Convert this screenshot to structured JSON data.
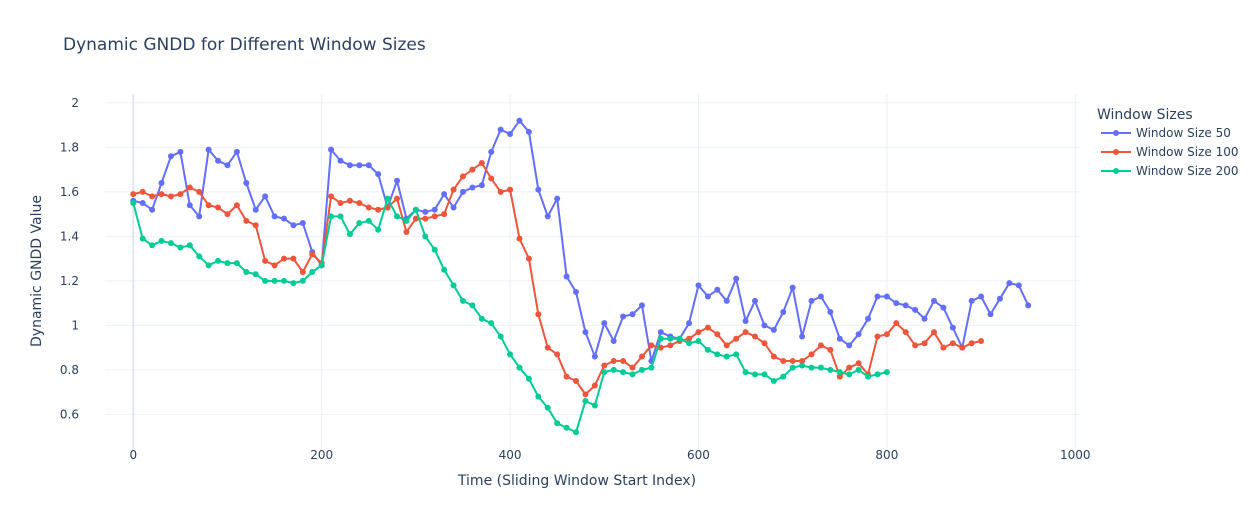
{
  "chart_data": {
    "type": "line",
    "title": "Dynamic GNDD for Different Window Sizes",
    "xlabel": "Time (Sliding Window Start Index)",
    "ylabel": "Dynamic GNDD Value",
    "xlim": [
      -30,
      1005
    ],
    "ylim": [
      0.44,
      2.04
    ],
    "xticks": [
      0,
      200,
      400,
      600,
      800,
      1000
    ],
    "yticks": [
      0.6,
      0.8,
      1,
      1.2,
      1.4,
      1.6,
      1.8,
      2
    ],
    "grid": true,
    "legend": {
      "title": "Window Sizes",
      "position": "top-right"
    },
    "series": [
      {
        "name": "Window Size 50",
        "color": "#636efa",
        "x_start": 0,
        "x_step": 10,
        "values": [
          1.56,
          1.55,
          1.52,
          1.64,
          1.76,
          1.78,
          1.54,
          1.49,
          1.79,
          1.74,
          1.72,
          1.78,
          1.64,
          1.52,
          1.58,
          1.49,
          1.48,
          1.45,
          1.46,
          1.33,
          1.27,
          1.79,
          1.74,
          1.72,
          1.72,
          1.72,
          1.68,
          1.53,
          1.65,
          1.48,
          1.52,
          1.51,
          1.52,
          1.59,
          1.53,
          1.6,
          1.62,
          1.63,
          1.78,
          1.88,
          1.86,
          1.92,
          1.87,
          1.61,
          1.49,
          1.57,
          1.22,
          1.15,
          0.97,
          0.86,
          1.01,
          0.93,
          1.04,
          1.05,
          1.09,
          0.84,
          0.97,
          0.95,
          0.94,
          1.01,
          1.18,
          1.13,
          1.16,
          1.11,
          1.21,
          1.02,
          1.11,
          1.0,
          0.98,
          1.06,
          1.17,
          0.95,
          1.11,
          1.13,
          1.06,
          0.94,
          0.91,
          0.96,
          1.03,
          1.13,
          1.13,
          1.1,
          1.09,
          1.07,
          1.03,
          1.11,
          1.08,
          0.99,
          0.9,
          1.11,
          1.13,
          1.05,
          1.12,
          1.19,
          1.18,
          1.09
        ]
      },
      {
        "name": "Window Size 100",
        "color": "#ef553b",
        "x_start": 0,
        "x_step": 10,
        "values": [
          1.59,
          1.6,
          1.58,
          1.59,
          1.58,
          1.59,
          1.62,
          1.6,
          1.54,
          1.53,
          1.5,
          1.54,
          1.47,
          1.45,
          1.29,
          1.27,
          1.3,
          1.3,
          1.24,
          1.32,
          1.28,
          1.58,
          1.55,
          1.56,
          1.55,
          1.53,
          1.52,
          1.53,
          1.57,
          1.42,
          1.48,
          1.48,
          1.49,
          1.5,
          1.61,
          1.67,
          1.7,
          1.73,
          1.66,
          1.6,
          1.61,
          1.39,
          1.3,
          1.05,
          0.9,
          0.87,
          0.77,
          0.75,
          0.69,
          0.73,
          0.82,
          0.84,
          0.84,
          0.81,
          0.86,
          0.91,
          0.9,
          0.91,
          0.93,
          0.94,
          0.97,
          0.99,
          0.96,
          0.91,
          0.94,
          0.97,
          0.95,
          0.92,
          0.86,
          0.84,
          0.84,
          0.84,
          0.87,
          0.91,
          0.89,
          0.77,
          0.81,
          0.83,
          0.78,
          0.95,
          0.96,
          1.01,
          0.97,
          0.91,
          0.92,
          0.97,
          0.9,
          0.92,
          0.9,
          0.92,
          0.93
        ]
      },
      {
        "name": "Window Size 200",
        "color": "#00cc96",
        "x_start": 0,
        "x_step": 10,
        "values": [
          1.55,
          1.39,
          1.36,
          1.38,
          1.37,
          1.35,
          1.36,
          1.31,
          1.27,
          1.29,
          1.28,
          1.28,
          1.24,
          1.23,
          1.2,
          1.2,
          1.2,
          1.19,
          1.2,
          1.24,
          1.27,
          1.49,
          1.49,
          1.41,
          1.46,
          1.47,
          1.43,
          1.57,
          1.49,
          1.47,
          1.52,
          1.4,
          1.34,
          1.25,
          1.18,
          1.11,
          1.09,
          1.03,
          1.01,
          0.95,
          0.87,
          0.81,
          0.76,
          0.68,
          0.63,
          0.56,
          0.54,
          0.52,
          0.66,
          0.64,
          0.79,
          0.8,
          0.79,
          0.78,
          0.8,
          0.81,
          0.94,
          0.94,
          0.94,
          0.92,
          0.93,
          0.89,
          0.87,
          0.86,
          0.87,
          0.79,
          0.78,
          0.78,
          0.75,
          0.77,
          0.81,
          0.82,
          0.81,
          0.81,
          0.8,
          0.79,
          0.78,
          0.8,
          0.77,
          0.78,
          0.79
        ]
      }
    ]
  }
}
